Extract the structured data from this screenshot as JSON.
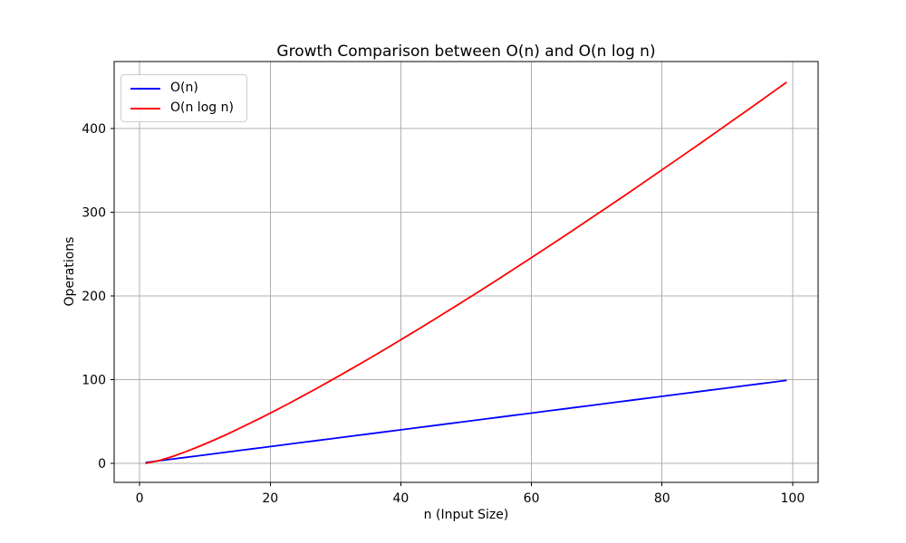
{
  "chart_data": {
    "type": "line",
    "title": "Growth Comparison between O(n) and O(n log n)",
    "xlabel": "n (Input Size)",
    "ylabel": "Operations",
    "x": [
      1,
      3,
      5,
      7,
      9,
      11,
      13,
      15,
      17,
      19,
      21,
      23,
      25,
      27,
      29,
      31,
      33,
      35,
      37,
      39,
      41,
      43,
      45,
      47,
      49,
      51,
      53,
      55,
      57,
      59,
      61,
      63,
      65,
      67,
      69,
      71,
      73,
      75,
      77,
      79,
      81,
      83,
      85,
      87,
      89,
      91,
      93,
      95,
      97,
      99
    ],
    "series": [
      {
        "name": "O(n)",
        "color": "#0000ff",
        "values": [
          1,
          3,
          5,
          7,
          9,
          11,
          13,
          15,
          17,
          19,
          21,
          23,
          25,
          27,
          29,
          31,
          33,
          35,
          37,
          39,
          41,
          43,
          45,
          47,
          49,
          51,
          53,
          55,
          57,
          59,
          61,
          63,
          65,
          67,
          69,
          71,
          73,
          75,
          77,
          79,
          81,
          83,
          85,
          87,
          89,
          91,
          93,
          95,
          97,
          99
        ]
      },
      {
        "name": "O(n log n)",
        "color": "#ff0000",
        "values": [
          0,
          3.3,
          8,
          13.6,
          19.8,
          26.4,
          33.3,
          40.6,
          48.2,
          55.9,
          63.9,
          72.1,
          80.5,
          89,
          97.7,
          106.5,
          115.4,
          124.4,
          133.6,
          142.9,
          152.3,
          161.7,
          171.3,
          181,
          190.7,
          200.5,
          210.4,
          220.4,
          230.5,
          240.6,
          250.8,
          261,
          271.3,
          281.7,
          292.2,
          302.7,
          313.2,
          323.8,
          334.5,
          345.2,
          356,
          366.8,
          377.6,
          388.5,
          399.5,
          410.5,
          421.5,
          432.6,
          443.7,
          454.9
        ]
      }
    ],
    "xlim": [
      -3.9,
      103.9
    ],
    "ylim": [
      -22.8,
      480
    ],
    "xticks": [
      0,
      20,
      40,
      60,
      80,
      100
    ],
    "yticks": [
      0,
      100,
      200,
      300,
      400
    ],
    "grid": true,
    "grid_color": "#b0b0b0",
    "spine_color": "#000000",
    "tick_label_color": "#000000",
    "legend_position": "upper left",
    "background": "#ffffff"
  }
}
